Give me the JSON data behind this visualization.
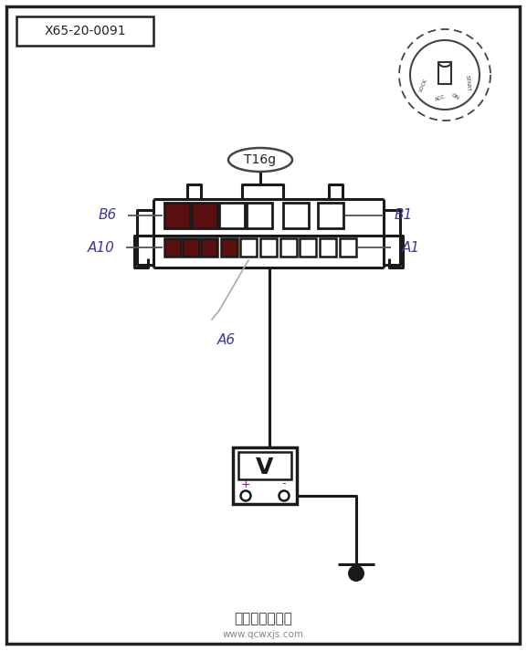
{
  "bg_color": "#ffffff",
  "label_x65": "X65-20-0091",
  "label_t16g": "T16g",
  "label_b6": "B6",
  "label_b1": "B1",
  "label_a10": "A10",
  "label_a1": "A1",
  "label_a6": "A6",
  "dark_red": "#5a1010",
  "line_color": "#1a1a1a",
  "label_color": "#3a3a9a",
  "footer_text": "汽车维修技术网",
  "footer_sub": "www.qcwxjs.com",
  "fig_w": 5.77,
  "fig_h": 7.13,
  "dpi": 100
}
